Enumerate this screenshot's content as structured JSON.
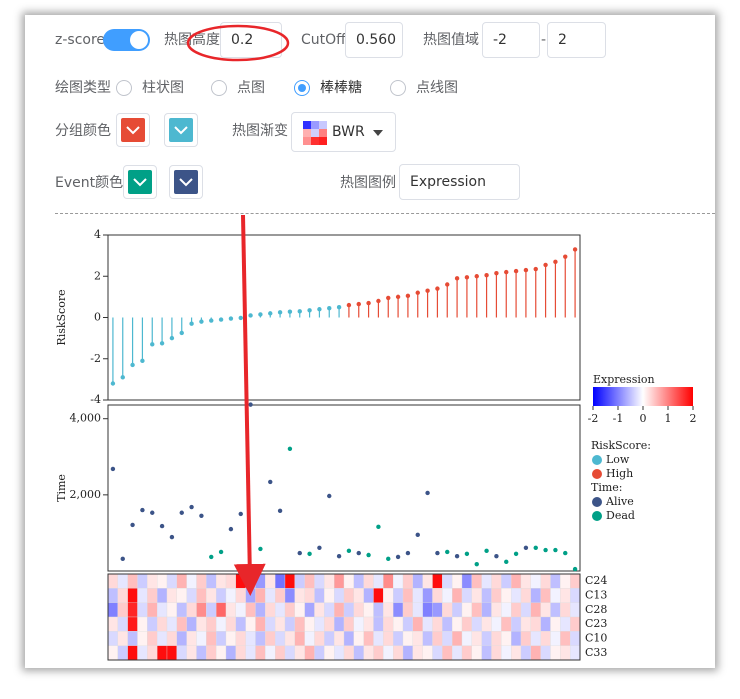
{
  "controls": {
    "zscore_label": "z-score",
    "heatmap_height": {
      "label": "热图高度",
      "value": "0.2"
    },
    "cutoff": {
      "label": "CutOff",
      "value": "0.560"
    },
    "heatmap_range": {
      "label": "热图值域",
      "min": "-2",
      "separator": "-",
      "max": "2"
    },
    "plot_type": {
      "label": "绘图类型",
      "options": [
        "柱状图",
        "点图",
        "棒棒糖",
        "点线图"
      ],
      "selected": 2
    },
    "group_colors": {
      "label": "分组颜色",
      "colors": [
        "#e64b35",
        "#4db8d0"
      ]
    },
    "heatmap_gradient": {
      "label": "热图渐变",
      "value": "BWR"
    },
    "event_colors": {
      "label": "Event颜色",
      "colors": [
        "#00a087",
        "#3c5488"
      ]
    },
    "heatmap_legend": {
      "label": "热图图例",
      "value": "Expression"
    }
  },
  "chart_data": [
    {
      "type": "lollipop",
      "y_label": "RiskScore",
      "legend_title": "RiskScore:",
      "ylim": [
        -4,
        4
      ],
      "yticks": [
        -4,
        -2,
        0,
        2,
        4
      ],
      "series": [
        {
          "name": "Low",
          "color": "#4db8d0",
          "values": [
            -3.2,
            -2.9,
            -2.3,
            -2.1,
            -1.3,
            -1.25,
            -1.0,
            -0.75,
            -0.3,
            -0.2,
            -0.15,
            -0.1,
            -0.05,
            -0.02,
            0.1,
            0.15,
            0.2,
            0.25,
            0.28,
            0.3,
            0.35,
            0.4,
            0.45,
            0.5,
            null,
            null,
            null,
            null,
            null,
            null,
            null,
            null,
            null,
            null,
            null,
            null,
            null,
            null,
            null,
            null,
            null,
            null,
            null,
            null,
            null,
            null,
            null,
            null
          ]
        },
        {
          "name": "High",
          "color": "#e64b35",
          "values": [
            null,
            null,
            null,
            null,
            null,
            null,
            null,
            null,
            null,
            null,
            null,
            null,
            null,
            null,
            null,
            null,
            null,
            null,
            null,
            null,
            null,
            null,
            null,
            null,
            0.6,
            0.65,
            0.7,
            0.8,
            0.95,
            1.0,
            1.05,
            1.2,
            1.3,
            1.4,
            1.6,
            1.9,
            1.95,
            2.0,
            2.05,
            2.15,
            2.2,
            2.25,
            2.3,
            2.35,
            2.55,
            2.7,
            2.95,
            3.3
          ]
        }
      ]
    },
    {
      "type": "scatter",
      "y_label": "Time",
      "legend_title": "Time:",
      "ylim": [
        0,
        4360
      ],
      "yticks": [
        {
          "value": 2000,
          "label": "2,000"
        },
        {
          "value": 4000,
          "label": "4,000"
        }
      ],
      "series": [
        {
          "name": "Alive",
          "color": "#3c5488",
          "values": [
            2680,
            320,
            1210,
            1600,
            1530,
            1180,
            890,
            1530,
            1680,
            1450,
            null,
            null,
            1100,
            1500,
            4370,
            null,
            2340,
            1580,
            null,
            470,
            null,
            610,
            1970,
            390,
            null,
            470,
            null,
            null,
            null,
            370,
            470,
            950,
            2050,
            470,
            null,
            390,
            null,
            null,
            null,
            390,
            null,
            null,
            610,
            null,
            null,
            null,
            null,
            null
          ]
        },
        {
          "name": "Dead",
          "color": "#00a087",
          "values": [
            null,
            null,
            null,
            null,
            null,
            null,
            null,
            null,
            null,
            null,
            370,
            500,
            null,
            null,
            null,
            580,
            null,
            null,
            3210,
            null,
            450,
            null,
            null,
            null,
            530,
            null,
            420,
            1160,
            320,
            null,
            null,
            null,
            null,
            null,
            500,
            null,
            450,
            180,
            530,
            null,
            240,
            450,
            null,
            610,
            550,
            550,
            470,
            50
          ]
        }
      ]
    },
    {
      "type": "heatmap",
      "legend_title": "Expression",
      "zlim": [
        -2,
        2
      ],
      "colors": [
        "#0000ff",
        "#ffffff",
        "#ff0000"
      ],
      "colorbar_ticks": [
        -2,
        -1,
        0,
        1,
        2
      ],
      "rows": [
        "C24",
        "C13",
        "C28",
        "C23",
        "C10",
        "C33"
      ],
      "values": [
        [
          0.3,
          -0.2,
          0.5,
          -0.4,
          0.2,
          0.1,
          -0.3,
          0.6,
          -0.1,
          0.4,
          -0.5,
          0.2,
          0.3,
          1.9,
          -0.6,
          -0.8,
          0.2,
          -1.1,
          1.9,
          -0.4,
          0.5,
          -0.3,
          0.2,
          0.8,
          0.1,
          -0.5,
          0.3,
          -0.2,
          0.9,
          -0.1,
          0.4,
          -0.6,
          0.2,
          1.9,
          -0.3,
          0.1,
          -0.9,
          0.5,
          -0.2,
          0.3,
          -0.4,
          0.6,
          0.2,
          -0.1,
          0.3,
          -0.5,
          0.1,
          0.4
        ],
        [
          -0.5,
          0.3,
          1.9,
          -0.2,
          0.4,
          -0.6,
          0.2,
          0.1,
          -0.3,
          0.5,
          0.2,
          -0.4,
          -0.1,
          0.3,
          -0.7,
          0.6,
          -0.2,
          0.4,
          -0.9,
          0.2,
          0.3,
          -0.5,
          0.1,
          -0.3,
          0.4,
          0.2,
          -0.6,
          1.9,
          0.1,
          -0.4,
          0.5,
          -0.2,
          -0.8,
          0.3,
          -0.1,
          0.6,
          -0.3,
          0.2,
          -0.5,
          0.4,
          0.1,
          -0.2,
          0.3,
          -0.6,
          0.5,
          -0.1,
          0.2,
          -0.3
        ],
        [
          -1.0,
          0.4,
          1.7,
          -0.3,
          0.6,
          -0.2,
          0.1,
          -0.5,
          0.3,
          0.9,
          -0.4,
          1.2,
          0.2,
          -0.1,
          0.5,
          -0.6,
          0.3,
          -0.2,
          0.4,
          0.1,
          -0.7,
          0.2,
          -0.3,
          0.6,
          -0.4,
          0.3,
          0.1,
          -0.5,
          0.2,
          -0.9,
          0.4,
          -0.2,
          -1.0,
          -0.8,
          0.3,
          -0.4,
          0.1,
          0.5,
          -0.6,
          0.2,
          -0.1,
          0.4,
          -0.3,
          0.6,
          0.2,
          -0.5,
          0.3,
          -0.2
        ],
        [
          0.2,
          -0.3,
          1.8,
          0.1,
          -0.4,
          0.3,
          -0.2,
          0.5,
          -0.6,
          0.2,
          0.4,
          -0.1,
          0.3,
          -0.5,
          0.1,
          0.6,
          -0.3,
          0.2,
          -0.4,
          0.5,
          0.1,
          -0.2,
          0.3,
          -0.6,
          0.4,
          -0.1,
          0.2,
          -0.5,
          0.3,
          0.1,
          -0.4,
          0.6,
          -0.2,
          0.3,
          -0.5,
          0.1,
          0.4,
          -0.3,
          0.2,
          -0.1,
          0.5,
          -0.4,
          0.2,
          0.3,
          -0.6,
          0.1,
          -0.2,
          0.4
        ],
        [
          -0.3,
          0.2,
          -0.5,
          0.1,
          0.4,
          -0.2,
          0.3,
          -0.6,
          0.2,
          -0.1,
          0.5,
          -0.4,
          0.1,
          0.3,
          -0.2,
          -0.5,
          0.4,
          -0.3,
          0.2,
          0.6,
          -0.1,
          0.3,
          -0.4,
          0.2,
          -0.6,
          0.1,
          0.5,
          -0.2,
          0.3,
          -0.4,
          0.1,
          0.2,
          -0.5,
          0.4,
          -0.3,
          0.6,
          -0.1,
          0.2,
          -0.4,
          0.3,
          0.1,
          -0.6,
          0.4,
          -0.2,
          0.3,
          -0.1,
          0.5,
          -0.3
        ],
        [
          0.1,
          -0.4,
          1.9,
          -0.2,
          0.3,
          1.9,
          1.9,
          -0.3,
          0.2,
          -0.5,
          0.4,
          0.1,
          -0.6,
          0.3,
          -0.2,
          0.5,
          -0.1,
          0.4,
          -0.3,
          0.2,
          0.6,
          -0.4,
          0.1,
          -0.2,
          0.3,
          -0.5,
          0.2,
          0.4,
          -0.1,
          0.3,
          -0.6,
          0.2,
          0.1,
          -0.3,
          0.5,
          -0.2,
          0.4,
          0.1,
          -0.5,
          0.3,
          -0.1,
          0.2,
          -0.4,
          0.6,
          -0.3,
          0.1,
          0.2,
          -0.2
        ]
      ]
    }
  ]
}
